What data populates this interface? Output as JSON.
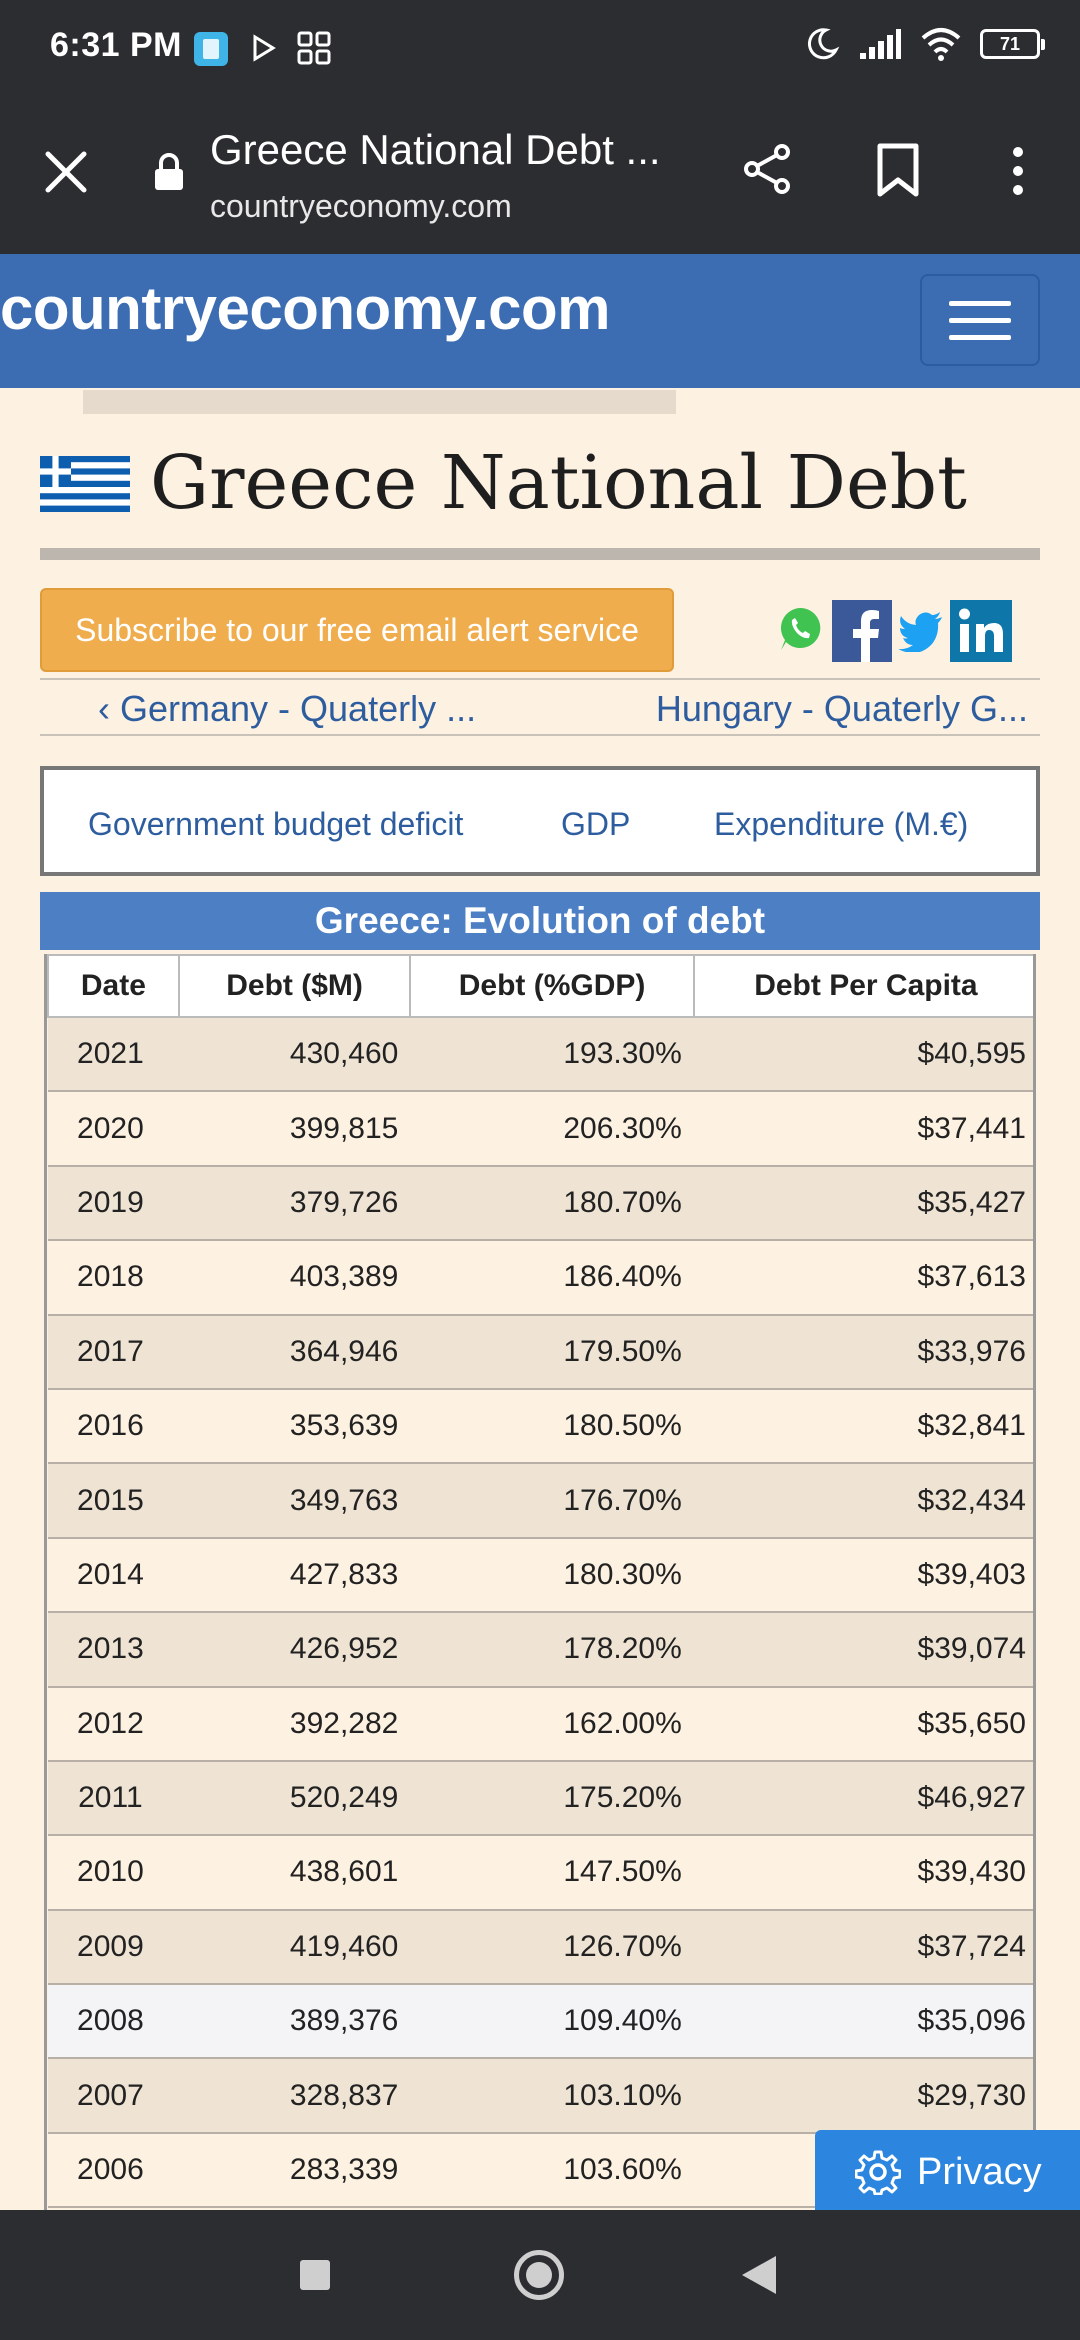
{
  "status_bar": {
    "time": "6:31 PM",
    "battery": "71"
  },
  "browser": {
    "title": "Greece National Debt ...",
    "url": "countryeconomy.com"
  },
  "site": {
    "logo": "countryeconomy.com"
  },
  "page": {
    "title": "Greece National Debt",
    "subscribe_label": "Subscribe to our free email alert service",
    "prev_link": "‹ Germany - Quaterly ...",
    "next_link": "Hungary - Quaterly G...",
    "related_links": [
      "Government budget deficit",
      "GDP",
      "Expenditure (M.€)"
    ]
  },
  "table": {
    "caption": "Greece: Evolution of debt",
    "headers": [
      "Date",
      "Debt ($M)",
      "Debt (%GDP)",
      "Debt Per Capita"
    ],
    "rows": [
      [
        "2021",
        "430,460",
        "193.30%",
        "$40,595"
      ],
      [
        "2020",
        "399,815",
        "206.30%",
        "$37,441"
      ],
      [
        "2019",
        "379,726",
        "180.70%",
        "$35,427"
      ],
      [
        "2018",
        "403,389",
        "186.40%",
        "$37,613"
      ],
      [
        "2017",
        "364,946",
        "179.50%",
        "$33,976"
      ],
      [
        "2016",
        "353,639",
        "180.50%",
        "$32,841"
      ],
      [
        "2015",
        "349,763",
        "176.70%",
        "$32,434"
      ],
      [
        "2014",
        "427,833",
        "180.30%",
        "$39,403"
      ],
      [
        "2013",
        "426,952",
        "178.20%",
        "$39,074"
      ],
      [
        "2012",
        "392,282",
        "162.00%",
        "$35,650"
      ],
      [
        "2011",
        "520,249",
        "175.20%",
        "$46,927"
      ],
      [
        "2010",
        "438,601",
        "147.50%",
        "$39,430"
      ],
      [
        "2009",
        "419,460",
        "126.70%",
        "$37,724"
      ],
      [
        "2008",
        "389,376",
        "109.40%",
        "$35,096"
      ],
      [
        "2007",
        "328,837",
        "103.10%",
        "$29,730"
      ],
      [
        "2006",
        "283,339",
        "103.60%",
        ""
      ]
    ]
  },
  "privacy_label": "Privacy",
  "colors": {
    "header_blue": "#3c6db3",
    "caption_blue": "#4c7fc4",
    "subscribe_orange": "#f0ad4e",
    "privacy_blue": "#2c85de",
    "page_bg": "#fdf1e1"
  }
}
